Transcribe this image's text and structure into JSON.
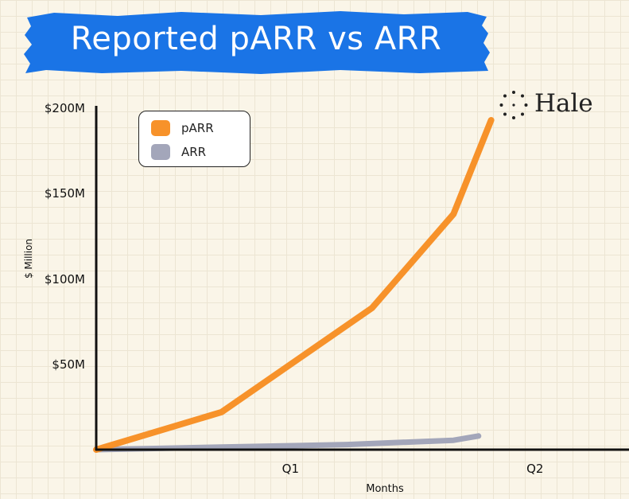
{
  "header": {
    "title": "Reported pARR vs ARR",
    "banner_color": "#1a74e6"
  },
  "brand": {
    "name": "Hale",
    "icon": "dotted-circle-logo-icon"
  },
  "chart_data": {
    "type": "line",
    "title": "Reported pARR vs ARR",
    "xlabel": "Months",
    "ylabel": "$ Million",
    "x": [
      0,
      1,
      2,
      3,
      3.2
    ],
    "xticks": [
      {
        "label": "Q1",
        "value": 1.55
      },
      {
        "label": "Q2",
        "value": 3.5
      }
    ],
    "xlim": [
      0,
      4.25
    ],
    "ylim": [
      0,
      200
    ],
    "yticks": [
      {
        "label": "$50M",
        "value": 50
      },
      {
        "label": "$100M",
        "value": 100
      },
      {
        "label": "$150M",
        "value": 150
      },
      {
        "label": "$200M",
        "value": 200
      }
    ],
    "series": [
      {
        "name": "pARR",
        "color": "#f7922a",
        "x": [
          0,
          1,
          2.2,
          2.85,
          3.15
        ],
        "values": [
          0,
          22,
          83,
          138,
          193
        ]
      },
      {
        "name": "ARR",
        "color": "#a3a6ba",
        "x": [
          0,
          1,
          2,
          2.85,
          3.05
        ],
        "values": [
          0,
          1.5,
          3,
          5.5,
          8
        ]
      }
    ],
    "legend_position": "top-left",
    "grid": true
  }
}
